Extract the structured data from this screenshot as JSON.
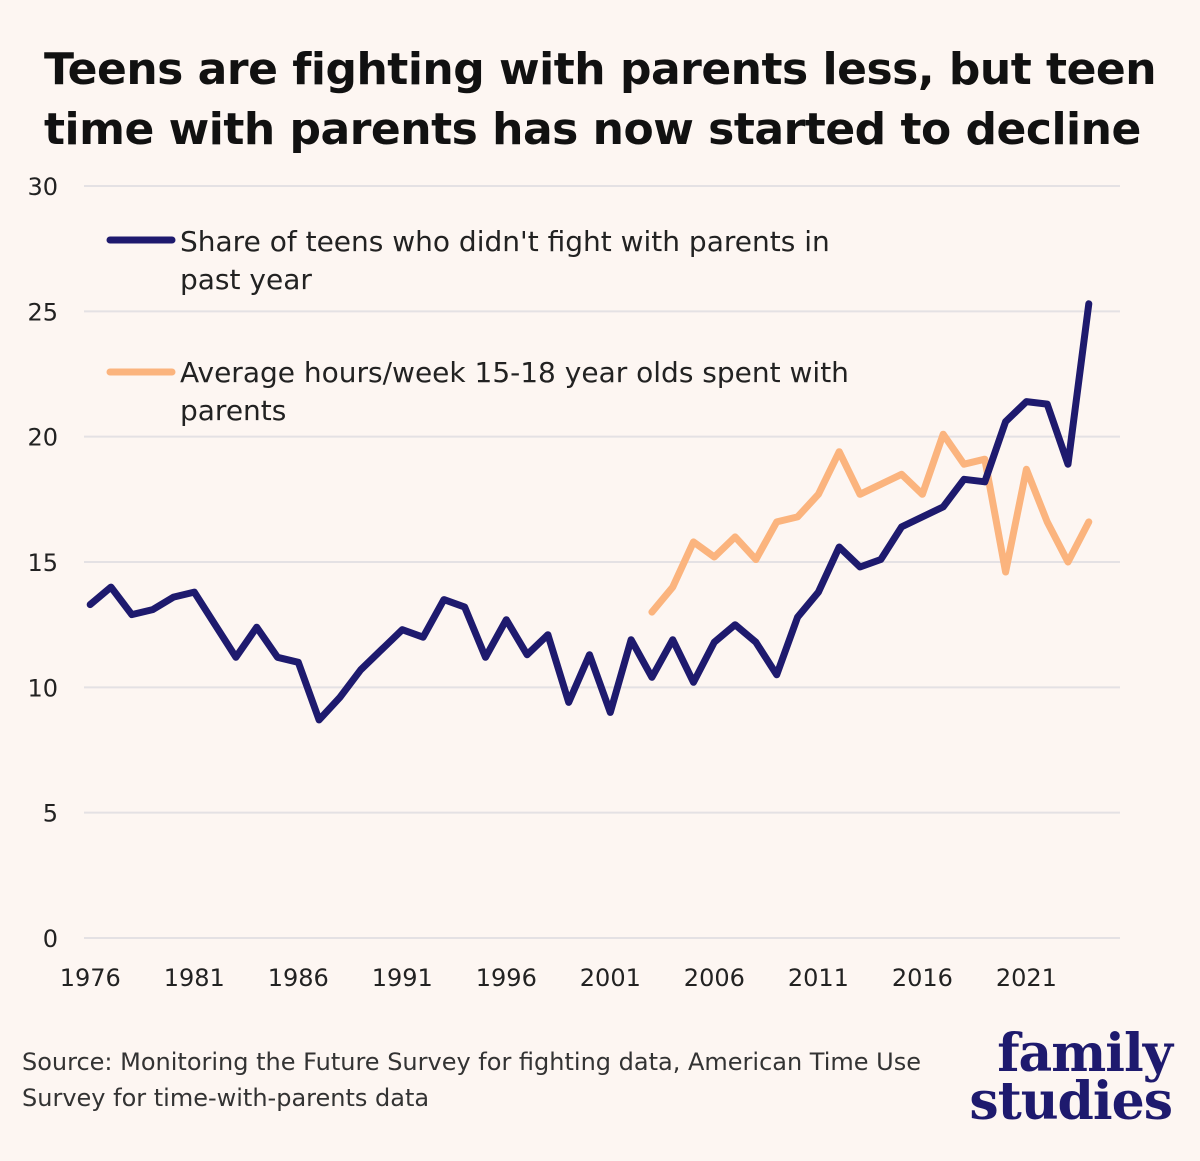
{
  "title": "Teens are fighting with parents less, but teen time with parents has now started to decline",
  "source": "Source: Monitoring the Future Survey for fighting data, American Time Use Survey for time-with-parents data",
  "logo": {
    "line1": "family",
    "line2": "studies"
  },
  "colors": {
    "navy": "#1e1a6e",
    "peach": "#fbb47e",
    "grid": "#e4e1e4",
    "background": "#fdf6f2"
  },
  "chart_data": {
    "type": "line",
    "title": "Teens are fighting with parents less, but teen time with parents has now started to decline",
    "xlabel": "",
    "ylabel": "",
    "xlim": [
      1975.7,
      2025.5
    ],
    "ylim": [
      0,
      30
    ],
    "x_ticks": [
      "1976",
      "1981",
      "1986",
      "1991",
      "1996",
      "2001",
      "2006",
      "2011",
      "2016",
      "2021"
    ],
    "y_ticks": [
      "0",
      "5",
      "10",
      "15",
      "20",
      "25",
      "30"
    ],
    "grid": true,
    "legend_position": "top-left",
    "series": [
      {
        "name": "Share of teens who didn't fight with parents in past year",
        "color": "#1e1a6e",
        "x": [
          1976,
          1977,
          1978,
          1979,
          1980,
          1981,
          1982,
          1983,
          1984,
          1985,
          1986,
          1987,
          1988,
          1989,
          1990,
          1991,
          1992,
          1993,
          1994,
          1995,
          1996,
          1997,
          1998,
          1999,
          2000,
          2001,
          2002,
          2003,
          2004,
          2005,
          2006,
          2007,
          2008,
          2009,
          2010,
          2011,
          2012,
          2013,
          2014,
          2015,
          2016,
          2017,
          2018,
          2019,
          2020,
          2021,
          2022,
          2023,
          2024
        ],
        "values": [
          13.3,
          14.0,
          12.9,
          13.1,
          13.6,
          13.8,
          12.5,
          11.2,
          12.4,
          11.2,
          11.0,
          8.7,
          9.6,
          10.7,
          11.5,
          12.3,
          12.0,
          13.5,
          13.2,
          11.2,
          12.7,
          11.3,
          12.1,
          9.4,
          11.3,
          9.0,
          11.9,
          10.4,
          11.9,
          10.2,
          11.8,
          12.5,
          11.8,
          10.5,
          12.8,
          13.8,
          15.6,
          14.8,
          15.1,
          16.4,
          16.8,
          17.2,
          18.3,
          18.2,
          20.6,
          21.4,
          21.3,
          18.9,
          25.3
        ]
      },
      {
        "name": "Average hours/week 15-18 year olds spent with parents",
        "color": "#fbb47e",
        "x": [
          2003,
          2004,
          2005,
          2006,
          2007,
          2008,
          2009,
          2010,
          2011,
          2012,
          2013,
          2014,
          2015,
          2016,
          2017,
          2018,
          2019,
          2020,
          2021,
          2022,
          2023,
          2024
        ],
        "values": [
          13.0,
          14.0,
          15.8,
          15.2,
          16.0,
          15.1,
          16.6,
          16.8,
          17.7,
          19.4,
          17.7,
          18.1,
          18.5,
          17.7,
          20.1,
          18.9,
          19.1,
          14.6,
          18.7,
          16.6,
          15.0,
          16.6
        ]
      }
    ]
  }
}
